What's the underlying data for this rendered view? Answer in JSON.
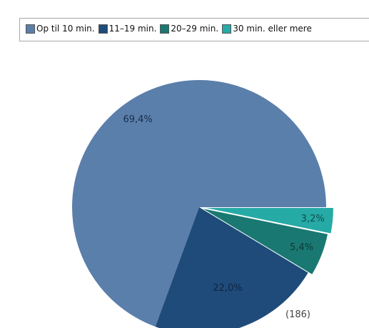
{
  "chart_data": {
    "type": "pie",
    "categories": [
      "Op til 10 min.",
      "11–19 min.",
      "20–29 min.",
      "30 min. eller mere"
    ],
    "values": [
      69.4,
      22.0,
      5.4,
      3.2
    ],
    "data_labels": [
      "69,4%",
      "22,0%",
      "5,4%",
      "3,2%"
    ],
    "colors": [
      "#5b7fab",
      "#1f4b7a",
      "#1a7872",
      "#26aaa6"
    ],
    "legend_position": "top",
    "annotation": "(186)"
  }
}
